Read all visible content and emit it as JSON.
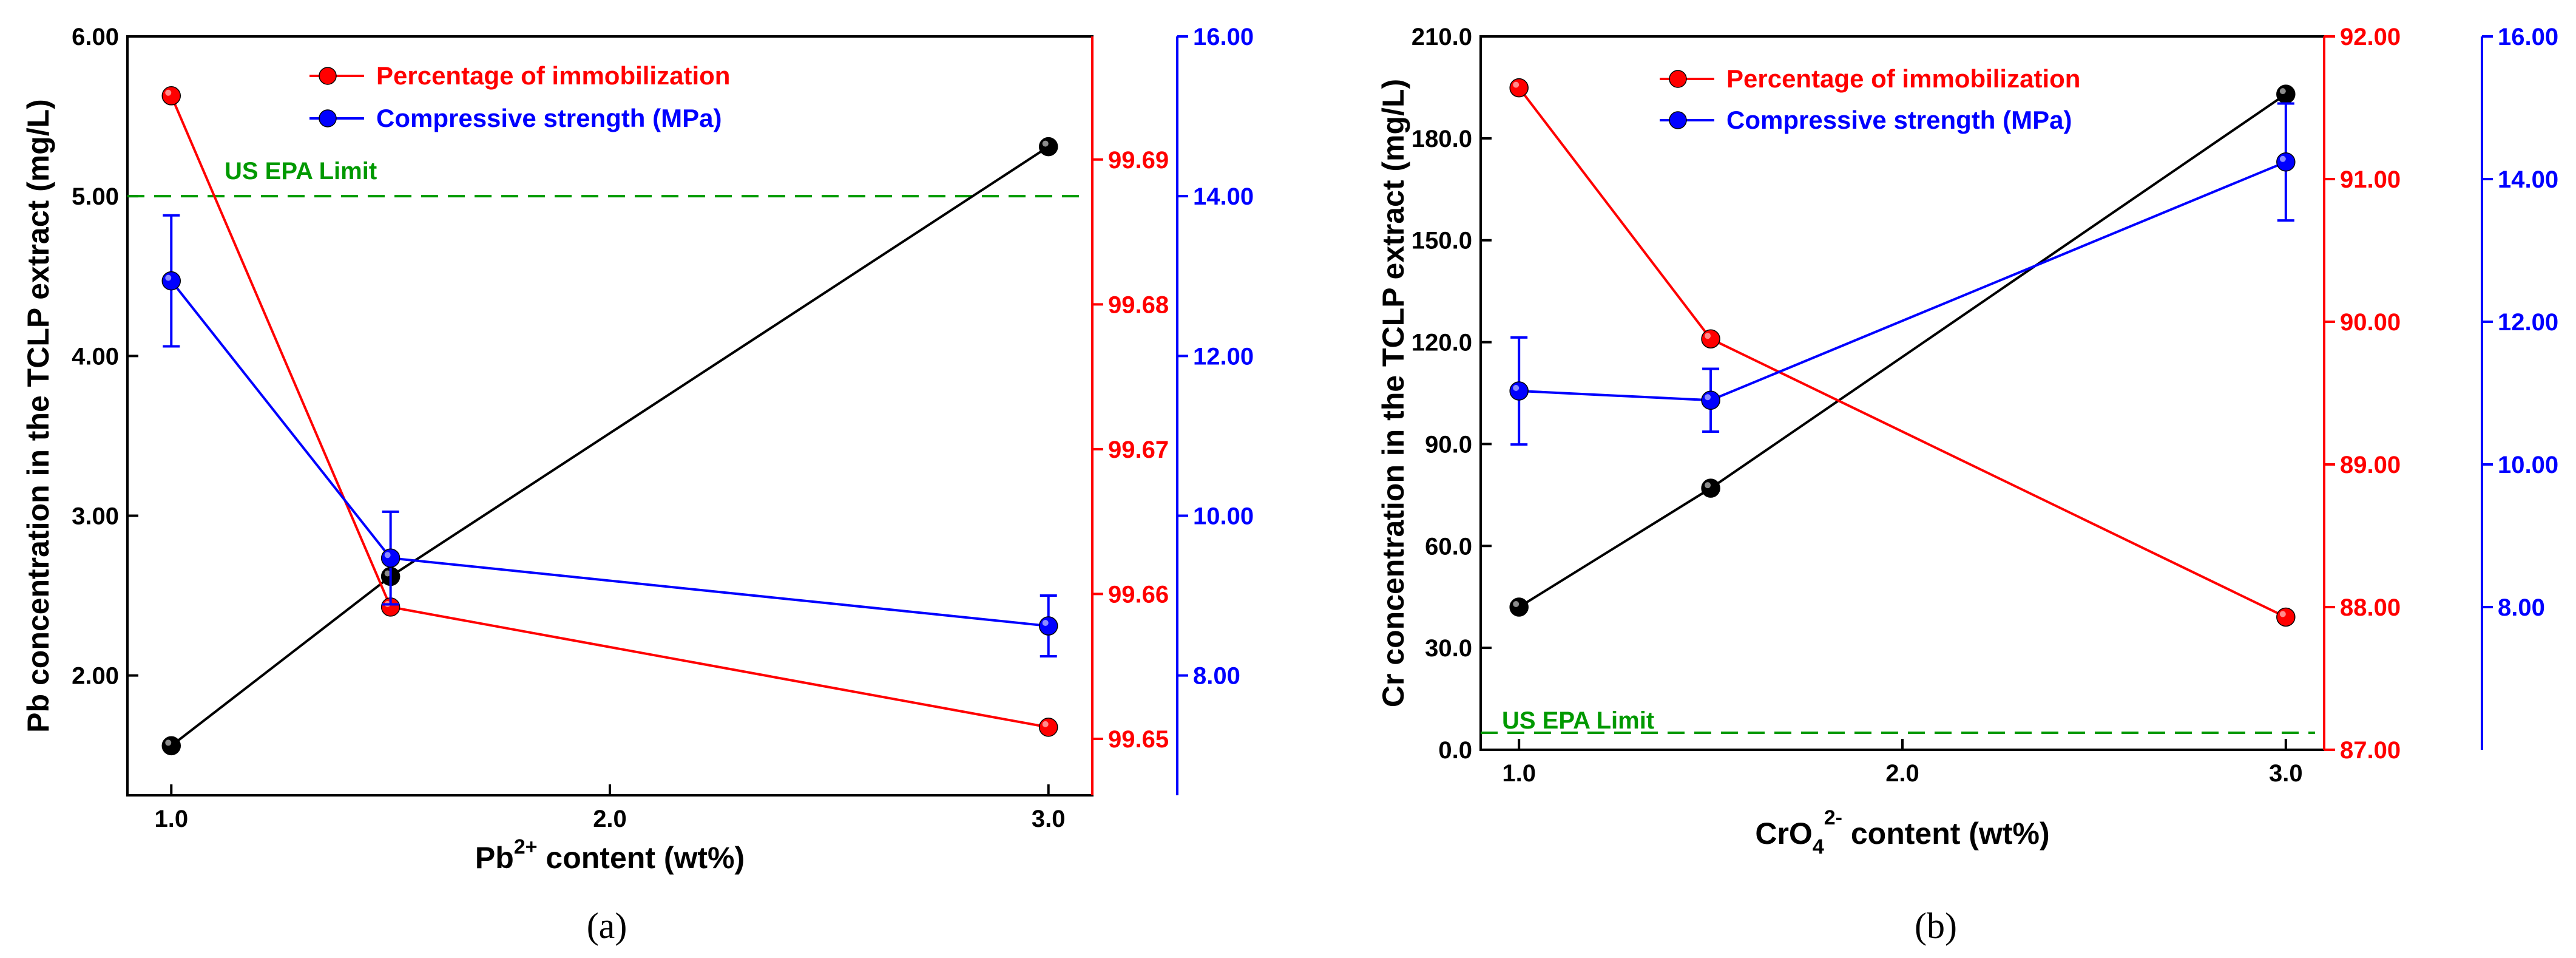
{
  "colors": {
    "black_series": "#000000",
    "red_series": "#ff0000",
    "blue_series": "#0000ff",
    "epa_line": "#009900",
    "axis": "#000000"
  },
  "chart_data": [
    {
      "type": "line",
      "panel_label": "(a)",
      "xlabel": "Pb",
      "xlabel_sup": "2+",
      "xlabel_suffix": " content (wt%)",
      "ylabel_left": "Pb concentration in the TCLP extract (mg/L)",
      "ylabel_right_red": "",
      "ylabel_right_blue": "",
      "xlim": [
        0.9,
        3.1
      ],
      "x_ticks": [
        1.0,
        2.0,
        3.0
      ],
      "x_tick_labels": [
        "1.0",
        "2.0",
        "3.0"
      ],
      "ylim_left": [
        1.25,
        6.0
      ],
      "y_ticks_left": [
        2.0,
        3.0,
        4.0,
        5.0,
        6.0
      ],
      "y_tick_labels_left": [
        "2.00",
        "3.00",
        "4.00",
        "5.00",
        "6.00"
      ],
      "ylim_right_red": [
        99.6461,
        99.6985
      ],
      "y_ticks_right_red": [
        99.65,
        99.66,
        99.67,
        99.68,
        99.69
      ],
      "y_tick_labels_right_red": [
        "99.65",
        "99.66",
        "99.67",
        "99.68",
        "99.69"
      ],
      "ylim_right_blue": [
        6.5,
        16.0
      ],
      "y_ticks_right_blue": [
        8.0,
        10.0,
        12.0,
        14.0,
        16.0
      ],
      "y_tick_labels_right_blue": [
        "8.00",
        "10.00",
        "12.00",
        "14.00",
        "16.00"
      ],
      "reference_line": {
        "label": "US EPA Limit",
        "value": 5.0
      },
      "legend": {
        "position": "top-center",
        "entries": [
          "Percentage of immobilization",
          "Compressive strength (MPa)"
        ]
      },
      "series": [
        {
          "name": "Pb concentration",
          "axis": "left",
          "color": "#000000",
          "x": [
            1.0,
            1.5,
            3.0
          ],
          "values": [
            1.56,
            2.62,
            5.31
          ]
        },
        {
          "name": "Percentage of immobilization",
          "axis": "right_red",
          "color": "#ff0000",
          "x": [
            1.0,
            1.5,
            3.0
          ],
          "values": [
            99.6944,
            99.6591,
            99.6508
          ]
        },
        {
          "name": "Compressive strength (MPa)",
          "axis": "right_blue",
          "color": "#0000ff",
          "x": [
            1.0,
            1.5,
            3.0
          ],
          "values": [
            12.94,
            9.47,
            8.62
          ],
          "errors": [
            0.82,
            0.58,
            0.38
          ]
        }
      ]
    },
    {
      "type": "line",
      "panel_label": "(b)",
      "xlabel": "CrO",
      "xlabel_sub": "4",
      "xlabel_sup": "2-",
      "xlabel_suffix": " content (wt%)",
      "ylabel_left": "Cr concentration in the TCLP extract (mg/L)",
      "ylabel_right_red": "",
      "ylabel_right_blue": "",
      "xlim": [
        0.9,
        3.1
      ],
      "x_ticks": [
        1.0,
        2.0,
        3.0
      ],
      "x_tick_labels": [
        "1.0",
        "2.0",
        "3.0"
      ],
      "ylim_left": [
        0.0,
        210.0
      ],
      "y_ticks_left": [
        0.0,
        30.0,
        60.0,
        90.0,
        120.0,
        150.0,
        180.0,
        210.0
      ],
      "y_tick_labels_left": [
        "0.0",
        "30.0",
        "60.0",
        "90.0",
        "120.0",
        "150.0",
        "180.0",
        "210.0"
      ],
      "ylim_right_red": [
        87.0,
        92.0
      ],
      "y_ticks_right_red": [
        87.0,
        88.0,
        89.0,
        90.0,
        91.0,
        92.0
      ],
      "y_tick_labels_right_red": [
        "87.00",
        "88.00",
        "89.00",
        "90.00",
        "91.00",
        "92.00"
      ],
      "ylim_right_blue": [
        6.0,
        16.0
      ],
      "y_ticks_right_blue": [
        8.0,
        10.0,
        12.0,
        14.0,
        16.0
      ],
      "y_tick_labels_right_blue": [
        "8.00",
        "10.00",
        "12.00",
        "14.00",
        "16.00"
      ],
      "reference_line": {
        "label": "US EPA Limit",
        "value": 5.0
      },
      "legend": {
        "position": "top-center",
        "entries": [
          "Percentage of immobilization",
          "Compressive strength (MPa)"
        ]
      },
      "series": [
        {
          "name": "Cr concentration",
          "axis": "left",
          "color": "#000000",
          "x": [
            1.0,
            1.5,
            3.0
          ],
          "values": [
            42.0,
            77.0,
            193.0
          ]
        },
        {
          "name": "Percentage of immobilization",
          "axis": "right_red",
          "color": "#ff0000",
          "x": [
            1.0,
            1.5,
            3.0
          ],
          "values": [
            91.64,
            89.88,
            87.93
          ]
        },
        {
          "name": "Compressive strength (MPa)",
          "axis": "right_blue",
          "color": "#0000ff",
          "x": [
            1.0,
            1.5,
            3.0
          ],
          "values": [
            11.03,
            10.9,
            14.24
          ],
          "errors": [
            0.75,
            0.44,
            0.82
          ]
        }
      ]
    }
  ]
}
